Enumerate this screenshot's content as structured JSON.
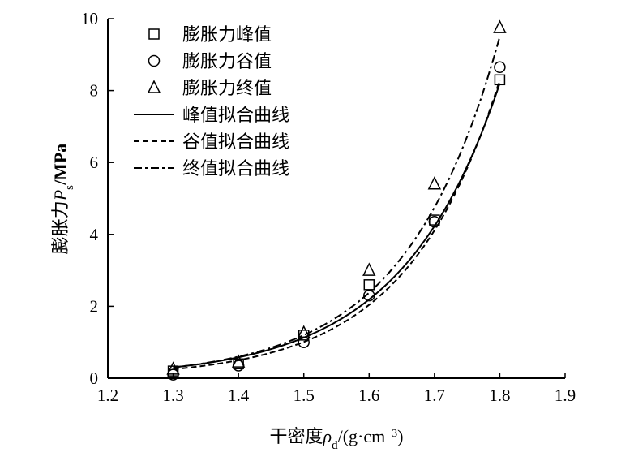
{
  "chart_data": {
    "type": "scatter",
    "xlabel": "干密度ρd/(g·cm⁻³)",
    "xlabel_parts": {
      "main": "干密度",
      "sym": "ρ",
      "sub": "d",
      "unit": "/(g·cm",
      "sup": "−3",
      "close": ")"
    },
    "ylabel": "膨胀力Ps/MPa",
    "ylabel_parts": {
      "main": "膨胀力",
      "sym": "P",
      "sub": "s",
      "unit": "/MPa"
    },
    "xlim": [
      1.2,
      1.9
    ],
    "ylim": [
      0,
      10
    ],
    "xticks": [
      "1.2",
      "1.3",
      "1.4",
      "1.5",
      "1.6",
      "1.7",
      "1.8",
      "1.9"
    ],
    "yticks": [
      "0",
      "2",
      "4",
      "6",
      "8",
      "10"
    ],
    "grid": false,
    "legend_position": "top-left",
    "series": [
      {
        "name": "膨胀力峰值",
        "marker": "square",
        "x": [
          1.3,
          1.4,
          1.5,
          1.6,
          1.7,
          1.8
        ],
        "y": [
          0.2,
          0.4,
          1.2,
          2.6,
          4.4,
          8.3
        ]
      },
      {
        "name": "膨胀力谷值",
        "marker": "circle",
        "x": [
          1.3,
          1.4,
          1.5,
          1.6,
          1.7,
          1.8
        ],
        "y": [
          0.1,
          0.35,
          1.0,
          2.3,
          4.35,
          8.65
        ]
      },
      {
        "name": "膨胀力终值",
        "marker": "triangle",
        "x": [
          1.3,
          1.4,
          1.5,
          1.6,
          1.7,
          1.8
        ],
        "y": [
          0.25,
          0.45,
          1.26,
          3.0,
          5.4,
          9.75
        ]
      }
    ],
    "curves": [
      {
        "name": "峰值拟合曲线",
        "style": "solid",
        "x": [
          1.3,
          1.4,
          1.5,
          1.6,
          1.7,
          1.8
        ],
        "y": [
          0.3,
          0.58,
          1.13,
          2.19,
          4.23,
          8.2
        ]
      },
      {
        "name": "谷值拟合曲线",
        "style": "dashed",
        "x": [
          1.3,
          1.4,
          1.5,
          1.6,
          1.7,
          1.8
        ],
        "y": [
          0.25,
          0.5,
          1.01,
          2.04,
          4.11,
          8.3
        ]
      },
      {
        "name": "终值拟合曲线",
        "style": "dashdot",
        "x": [
          1.3,
          1.4,
          1.5,
          1.6,
          1.7,
          1.8
        ],
        "y": [
          0.3,
          0.6,
          1.2,
          2.38,
          4.75,
          9.5
        ]
      }
    ]
  }
}
